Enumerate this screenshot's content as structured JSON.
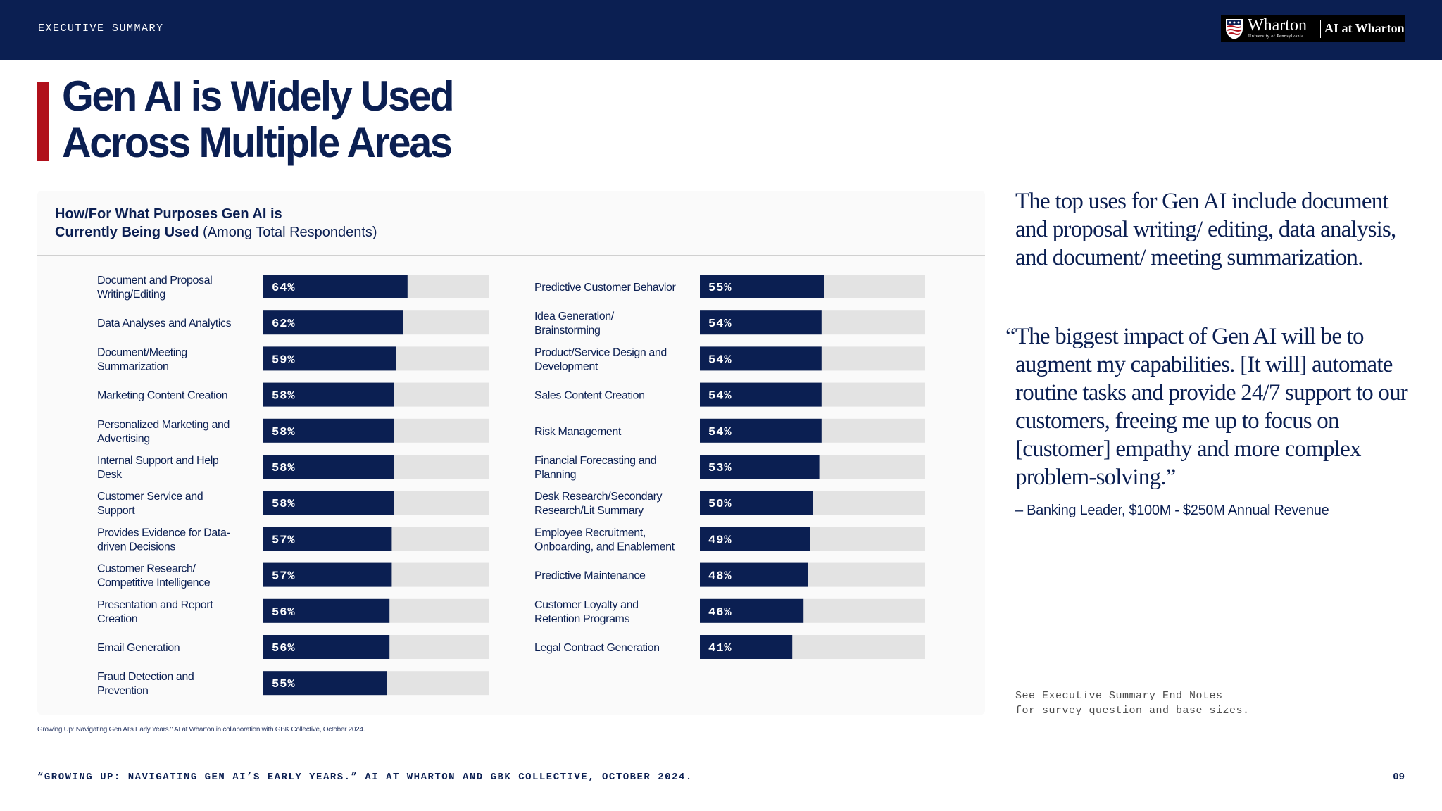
{
  "header": {
    "section_label": "EXECUTIVE SUMMARY",
    "logo": {
      "wordmark": "Wharton",
      "wordmark_sub": "University of Pennsylvania",
      "secondary": "AI at Wharton",
      "icon": "penn-shield-icon"
    }
  },
  "title": {
    "line1": "Gen AI is Widely Used",
    "line2": "Across Multiple Areas"
  },
  "panel": {
    "heading_bold_line1": "How/For What Purposes Gen AI is",
    "heading_bold_line2": "Currently Being Used",
    "heading_regular": " (Among Total Respondents)"
  },
  "chart_data": {
    "type": "bar",
    "orientation": "horizontal",
    "title": "How/For What Purposes Gen AI is Currently Being Used (Among Total Respondents)",
    "unit": "%",
    "xlim": [
      0,
      100
    ],
    "columns": [
      {
        "categories": [
          [
            "Document and Proposal",
            "Writing/Editing"
          ],
          [
            "Data Analyses and Analytics"
          ],
          [
            "Document/Meeting",
            "Summarization"
          ],
          [
            "Marketing Content Creation"
          ],
          [
            "Personalized Marketing and",
            "Advertising"
          ],
          [
            "Internal Support and Help",
            "Desk"
          ],
          [
            "Customer Service and",
            "Support"
          ],
          [
            "Provides Evidence for Data-",
            "driven Decisions"
          ],
          [
            "Customer Research/",
            "Competitive Intelligence"
          ],
          [
            "Presentation and Report",
            "Creation"
          ],
          [
            "Email Generation"
          ],
          [
            "Fraud Detection and",
            "Prevention"
          ]
        ],
        "values": [
          64,
          62,
          59,
          58,
          58,
          58,
          58,
          57,
          57,
          56,
          56,
          55
        ],
        "labels": [
          "64%",
          "62%",
          "59%",
          "58%",
          "58%",
          "58%",
          "58%",
          "57%",
          "57%",
          "56%",
          "56%",
          "55%"
        ]
      },
      {
        "categories": [
          [
            "Predictive Customer Behavior"
          ],
          [
            "Idea Generation/",
            "Brainstorming"
          ],
          [
            "Product/Service Design and",
            "Development"
          ],
          [
            "Sales Content Creation"
          ],
          [
            "Risk Management"
          ],
          [
            "Financial Forecasting and",
            "Planning"
          ],
          [
            "Desk Research/Secondary",
            "Research/Lit Summary"
          ],
          [
            "Employee Recruitment,",
            "Onboarding, and Enablement"
          ],
          [
            "Predictive Maintenance"
          ],
          [
            "Customer Loyalty and",
            "Retention Programs"
          ],
          [
            "Legal Contract Generation"
          ]
        ],
        "values": [
          55,
          54,
          54,
          54,
          54,
          53,
          50,
          49,
          48,
          46,
          41
        ],
        "labels": [
          "55%",
          "54%",
          "54%",
          "54%",
          "54%",
          "53%",
          "50%",
          "49%",
          "48%",
          "46%",
          "41%"
        ]
      }
    ],
    "colors": {
      "bar": "#0b1f52",
      "track": "#e3e3e3",
      "value_text": "#ffffff",
      "category_text": "#0b1f52"
    }
  },
  "sidebar": {
    "summary": "The top uses for Gen AI include document and proposal writing/ editing, data analysis, and document/ meeting summarization.",
    "quote": "“The biggest impact of Gen AI will be to augment my capabilities. [It will] automate routine tasks and provide 24/7 support to our customers, freeing me up to focus on [customer] empathy and more complex problem-solving.”",
    "attribution": "– Banking Leader, $100M - $250M  Annual Revenue",
    "endnote_line1": "See Executive Summary End Notes",
    "endnote_line2": "for survey question and base sizes."
  },
  "source_small": "Growing Up: Navigating Gen AI's Early Years.\" AI at Wharton in collaboration with GBK Collective, October 2024.",
  "footer": {
    "citation": "“GROWING UP: NAVIGATING GEN AI’S EARLY YEARS.” AI AT WHARTON AND GBK COLLECTIVE, OCTOBER 2024.",
    "page_number": "09"
  },
  "colors": {
    "navy": "#0b1f52",
    "accent_red": "#b0101b",
    "panel_bg": "#fafafa"
  }
}
